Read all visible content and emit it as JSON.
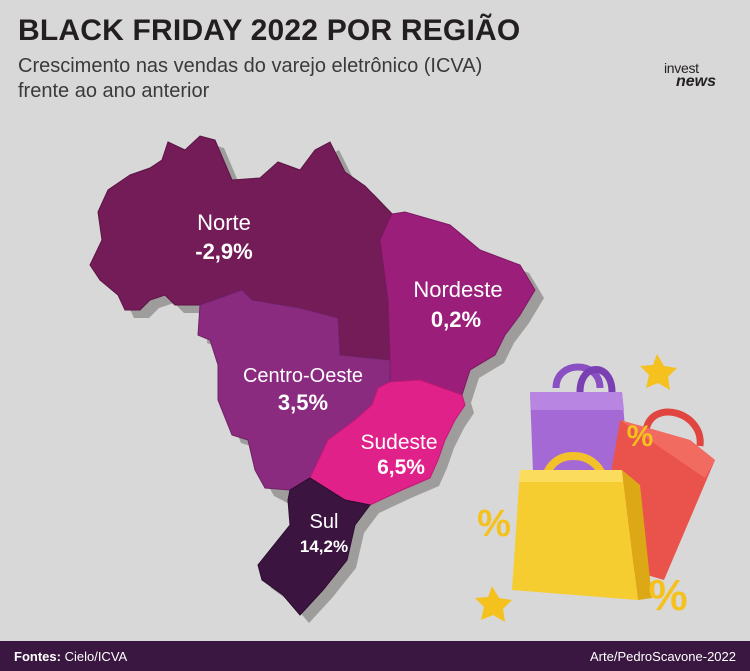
{
  "header": {
    "title": "BLACK FRIDAY 2022 POR REGIÃO",
    "subtitle_line1": "Crescimento nas vendas do varejo eletrônico (ICVA)",
    "subtitle_line2": "frente ao ano anterior"
  },
  "logo": {
    "line1": "invest",
    "line2": "news"
  },
  "regions": [
    {
      "name": "Norte",
      "value": "-2,9%",
      "color": "#741c57"
    },
    {
      "name": "Nordeste",
      "value": "0,2%",
      "color": "#9b1f7a"
    },
    {
      "name": "Centro-Oeste",
      "value": "3,5%",
      "color": "#8a2b80"
    },
    {
      "name": "Sudeste",
      "value": "6,5%",
      "color": "#e0218a"
    },
    {
      "name": "Sul",
      "value": "14,2%",
      "color": "#3c1440"
    }
  ],
  "illustration": {
    "badge_symbol": "%"
  },
  "footer": {
    "source_label": "Fontes:",
    "source_value": "Cielo/ICVA",
    "credit": "Arte/PedroScavone-2022"
  }
}
